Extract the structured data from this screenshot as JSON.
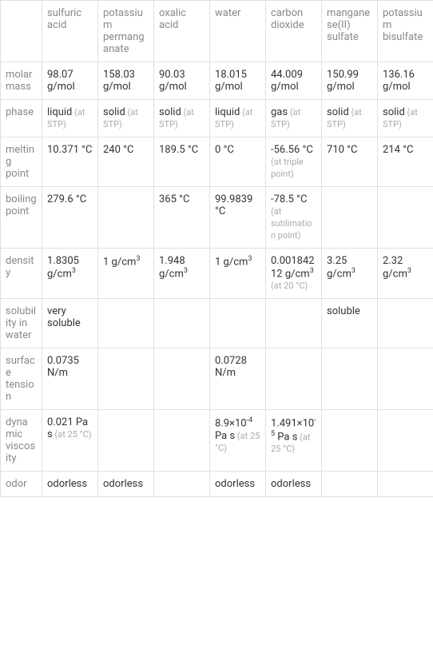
{
  "columns": [
    "",
    "sulfuric acid",
    "potassium permanganate",
    "oxalic acid",
    "water",
    "carbon dioxide",
    "manganese(II) sulfate",
    "potassium bisulfate"
  ],
  "rows": [
    {
      "label": "molar mass",
      "cells": [
        {
          "value": "98.07 g/mol"
        },
        {
          "value": "158.03 g/mol"
        },
        {
          "value": "90.03 g/mol"
        },
        {
          "value": "18.015 g/mol"
        },
        {
          "value": "44.009 g/mol"
        },
        {
          "value": "150.99 g/mol"
        },
        {
          "value": "136.16 g/mol"
        }
      ]
    },
    {
      "label": "phase",
      "cells": [
        {
          "value": "liquid",
          "note": "(at STP)"
        },
        {
          "value": "solid",
          "note": "(at STP)"
        },
        {
          "value": "solid",
          "note": "(at STP)"
        },
        {
          "value": "liquid",
          "note": "(at STP)"
        },
        {
          "value": "gas",
          "note": "(at STP)"
        },
        {
          "value": "solid",
          "note": "(at STP)"
        },
        {
          "value": "solid",
          "note": "(at STP)"
        }
      ]
    },
    {
      "label": "melting point",
      "cells": [
        {
          "value": "10.371 °C"
        },
        {
          "value": "240 °C"
        },
        {
          "value": "189.5 °C"
        },
        {
          "value": "0 °C"
        },
        {
          "value": "-56.56 °C",
          "note": "(at triple point)"
        },
        {
          "value": "710 °C"
        },
        {
          "value": "214 °C"
        }
      ]
    },
    {
      "label": "boiling point",
      "cells": [
        {
          "value": "279.6 °C"
        },
        {
          "value": ""
        },
        {
          "value": "365 °C"
        },
        {
          "value": "99.9839 °C"
        },
        {
          "value": "-78.5 °C",
          "note": "(at sublimation point)"
        },
        {
          "value": ""
        },
        {
          "value": ""
        }
      ]
    },
    {
      "label": "density",
      "cells": [
        {
          "value": "1.8305 g/cm",
          "sup": "3"
        },
        {
          "value": "1 g/cm",
          "sup": "3"
        },
        {
          "value": "1.948 g/cm",
          "sup": "3"
        },
        {
          "value": "1 g/cm",
          "sup": "3"
        },
        {
          "value": "0.00184212 g/cm",
          "sup": "3",
          "note": "(at 20 °C)"
        },
        {
          "value": "3.25 g/cm",
          "sup": "3"
        },
        {
          "value": "2.32 g/cm",
          "sup": "3"
        }
      ]
    },
    {
      "label": "solubility in water",
      "cells": [
        {
          "value": "very soluble"
        },
        {
          "value": ""
        },
        {
          "value": ""
        },
        {
          "value": ""
        },
        {
          "value": ""
        },
        {
          "value": "soluble"
        },
        {
          "value": ""
        }
      ]
    },
    {
      "label": "surface tension",
      "cells": [
        {
          "value": "0.0735 N/m"
        },
        {
          "value": ""
        },
        {
          "value": ""
        },
        {
          "value": "0.0728 N/m"
        },
        {
          "value": ""
        },
        {
          "value": ""
        },
        {
          "value": ""
        }
      ]
    },
    {
      "label": "dynamic viscosity",
      "cells": [
        {
          "value": "0.021 Pa s",
          "note": "(at 25 °C)"
        },
        {
          "value": ""
        },
        {
          "value": ""
        },
        {
          "value": "8.9×10",
          "sup": "-4",
          "suffix": " Pa s",
          "note": "(at 25 °C)"
        },
        {
          "value": "1.491×10",
          "sup": "-5",
          "suffix": " Pa s",
          "note": "(at 25 °C)"
        },
        {
          "value": ""
        },
        {
          "value": ""
        }
      ]
    },
    {
      "label": "odor",
      "cells": [
        {
          "value": "odorless"
        },
        {
          "value": "odorless"
        },
        {
          "value": ""
        },
        {
          "value": "odorless"
        },
        {
          "value": "odorless"
        },
        {
          "value": ""
        },
        {
          "value": ""
        }
      ]
    }
  ],
  "styling": {
    "border_color": "#e0e0e0",
    "header_color": "#888888",
    "text_color": "#333333",
    "note_color": "#aaaaaa",
    "background": "#ffffff",
    "font_size_main": 13,
    "font_size_note": 11
  }
}
